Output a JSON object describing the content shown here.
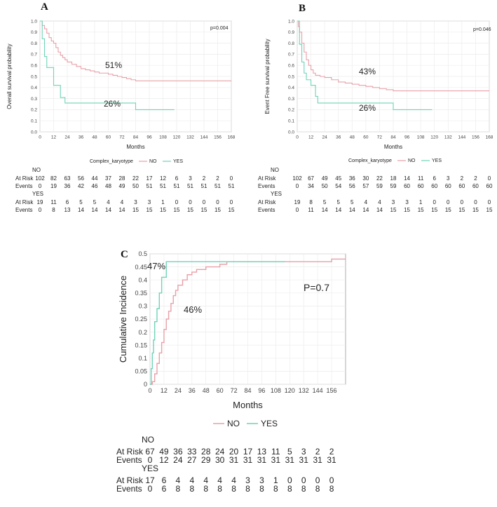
{
  "panels": [
    {
      "letter": "A",
      "ylabel": "Overall survival probability",
      "xlabel": "Months",
      "pvalue": "p=0.004",
      "legend_title": "Complex_karyotype",
      "legend": [
        "NO",
        "YES"
      ],
      "annotations": [
        "51%",
        "26%"
      ],
      "yticks": [
        "0.0",
        "0.1",
        "0.2",
        "0.3",
        "0.4",
        "0.5",
        "0.6",
        "0.7",
        "0.8",
        "0.9",
        "1.0"
      ],
      "xticks": [
        "0",
        "12",
        "24",
        "36",
        "48",
        "60",
        "72",
        "84",
        "96",
        "108",
        "120",
        "132",
        "144",
        "156",
        "168"
      ],
      "risk_table": {
        "no_title": "NO",
        "yes_title": "YES",
        "at_risk_label": "At Risk",
        "events_label": "Events",
        "no_at_risk": [
          "102",
          "82",
          "63",
          "56",
          "44",
          "37",
          "28",
          "22",
          "17",
          "12",
          "6",
          "3",
          "2",
          "2",
          "0"
        ],
        "no_events": [
          "0",
          "19",
          "36",
          "42",
          "46",
          "48",
          "49",
          "50",
          "51",
          "51",
          "51",
          "51",
          "51",
          "51",
          "51"
        ],
        "yes_at_risk": [
          "19",
          "11",
          "6",
          "5",
          "5",
          "4",
          "4",
          "3",
          "3",
          "1",
          "0",
          "0",
          "0",
          "0",
          "0"
        ],
        "yes_events": [
          "0",
          "8",
          "13",
          "14",
          "14",
          "14",
          "14",
          "15",
          "15",
          "15",
          "15",
          "15",
          "15",
          "15",
          "15"
        ]
      }
    },
    {
      "letter": "B",
      "ylabel": "Event Free survival probability",
      "xlabel": "Months",
      "pvalue": "p=0.046",
      "legend_title": "Complex_karyotype",
      "legend": [
        "NO",
        "YES"
      ],
      "annotations": [
        "43%",
        "26%"
      ],
      "yticks": [
        "0.0",
        "0.1",
        "0.2",
        "0.3",
        "0.4",
        "0.5",
        "0.6",
        "0.7",
        "0.8",
        "0.9",
        "1.0"
      ],
      "xticks": [
        "0",
        "12",
        "24",
        "36",
        "48",
        "60",
        "72",
        "84",
        "96",
        "108",
        "120",
        "132",
        "144",
        "156",
        "168"
      ],
      "risk_table": {
        "no_title": "NO",
        "yes_title": "YES",
        "at_risk_label": "At Risk",
        "events_label": "Events",
        "no_at_risk": [
          "102",
          "67",
          "49",
          "45",
          "36",
          "30",
          "22",
          "18",
          "14",
          "11",
          "6",
          "3",
          "2",
          "2",
          "0"
        ],
        "no_events": [
          "0",
          "34",
          "50",
          "54",
          "56",
          "57",
          "59",
          "59",
          "60",
          "60",
          "60",
          "60",
          "60",
          "60",
          "60"
        ],
        "yes_at_risk": [
          "19",
          "8",
          "5",
          "5",
          "5",
          "4",
          "4",
          "3",
          "3",
          "1",
          "0",
          "0",
          "0",
          "0",
          "0"
        ],
        "yes_events": [
          "0",
          "11",
          "14",
          "14",
          "14",
          "14",
          "14",
          "15",
          "15",
          "15",
          "15",
          "15",
          "15",
          "15",
          "15"
        ]
      }
    },
    {
      "letter": "C",
      "ylabel": "Cumulative Incidence",
      "xlabel": "Months",
      "pvalue": "P=0.7",
      "legend": [
        "NO",
        "YES"
      ],
      "annotations": [
        "47%",
        "46%"
      ],
      "yticks": [
        "0",
        "0.05",
        "0.1",
        "0.15",
        "0.2",
        "0.25",
        "0.3",
        "0.35",
        "0.4",
        "0.45",
        "0.5"
      ],
      "xticks": [
        "0",
        "12",
        "24",
        "36",
        "48",
        "60",
        "72",
        "84",
        "96",
        "108",
        "120",
        "132",
        "144",
        "156"
      ],
      "risk_table": {
        "no_title": "NO",
        "yes_title": "YES",
        "at_risk_label": "At Risk",
        "events_label": "Events",
        "no_at_risk": [
          "67",
          "49",
          "36",
          "33",
          "28",
          "24",
          "20",
          "17",
          "13",
          "11",
          "5",
          "3",
          "2",
          "2"
        ],
        "no_events": [
          "0",
          "12",
          "24",
          "27",
          "29",
          "30",
          "31",
          "31",
          "31",
          "31",
          "31",
          "31",
          "31",
          "31"
        ],
        "yes_at_risk": [
          "17",
          "6",
          "4",
          "4",
          "4",
          "4",
          "4",
          "3",
          "3",
          "1",
          "0",
          "0",
          "0",
          "0"
        ],
        "yes_events": [
          "0",
          "6",
          "8",
          "8",
          "8",
          "8",
          "8",
          "8",
          "8",
          "8",
          "8",
          "8",
          "8",
          "8"
        ]
      }
    }
  ],
  "chart_data": [
    {
      "type": "line",
      "title": "",
      "xlabel": "Months",
      "ylabel": "Overall survival probability",
      "xlim": [
        0,
        168
      ],
      "ylim": [
        0,
        1
      ],
      "grid": true,
      "colors": {
        "NO": "#e8a0a8",
        "YES": "#6fd3b8"
      },
      "series": [
        {
          "name": "NO",
          "x": [
            0,
            2,
            4,
            6,
            8,
            10,
            12,
            14,
            16,
            18,
            20,
            22,
            24,
            28,
            32,
            36,
            40,
            44,
            48,
            52,
            56,
            60,
            64,
            68,
            72,
            76,
            80,
            84,
            96,
            108,
            120,
            140,
            168
          ],
          "y": [
            1.0,
            0.96,
            0.93,
            0.89,
            0.85,
            0.82,
            0.8,
            0.76,
            0.72,
            0.69,
            0.67,
            0.65,
            0.63,
            0.61,
            0.59,
            0.57,
            0.56,
            0.55,
            0.54,
            0.53,
            0.53,
            0.52,
            0.51,
            0.5,
            0.49,
            0.48,
            0.47,
            0.46,
            0.46,
            0.46,
            0.46,
            0.46,
            0.46
          ]
        },
        {
          "name": "YES",
          "x": [
            0,
            2,
            4,
            6,
            8,
            12,
            18,
            22,
            24,
            36,
            48,
            60,
            72,
            84,
            96,
            108,
            118
          ],
          "y": [
            1.0,
            0.84,
            0.68,
            0.58,
            0.58,
            0.42,
            0.31,
            0.26,
            0.26,
            0.26,
            0.26,
            0.26,
            0.26,
            0.2,
            0.2,
            0.2,
            0.2
          ]
        }
      ],
      "annotations": [
        "51%",
        "26%"
      ],
      "pvalue": "p=0.004"
    },
    {
      "type": "line",
      "title": "",
      "xlabel": "Months",
      "ylabel": "Event Free survival probability",
      "xlim": [
        0,
        168
      ],
      "ylim": [
        0,
        1
      ],
      "grid": true,
      "colors": {
        "NO": "#e8a0a8",
        "YES": "#6fd3b8"
      },
      "series": [
        {
          "name": "NO",
          "x": [
            0,
            1,
            2,
            4,
            6,
            8,
            10,
            12,
            14,
            16,
            18,
            20,
            24,
            30,
            36,
            42,
            48,
            54,
            60,
            66,
            72,
            78,
            84,
            96,
            108,
            120,
            140,
            168
          ],
          "y": [
            1.0,
            0.95,
            0.9,
            0.8,
            0.72,
            0.65,
            0.6,
            0.56,
            0.53,
            0.51,
            0.51,
            0.5,
            0.49,
            0.47,
            0.45,
            0.44,
            0.43,
            0.42,
            0.41,
            0.4,
            0.39,
            0.38,
            0.37,
            0.37,
            0.37,
            0.37,
            0.37,
            0.37
          ]
        },
        {
          "name": "YES",
          "x": [
            0,
            2,
            4,
            6,
            8,
            12,
            16,
            18,
            24,
            36,
            48,
            60,
            72,
            84,
            96,
            108,
            118
          ],
          "y": [
            1.0,
            0.79,
            0.63,
            0.53,
            0.47,
            0.42,
            0.32,
            0.26,
            0.26,
            0.26,
            0.26,
            0.26,
            0.26,
            0.2,
            0.2,
            0.2,
            0.2
          ]
        }
      ],
      "annotations": [
        "43%",
        "26%"
      ],
      "pvalue": "p=0.046"
    },
    {
      "type": "line",
      "title": "",
      "xlabel": "Months",
      "ylabel": "Cumulative Incidence",
      "xlim": [
        0,
        168
      ],
      "ylim": [
        0,
        0.5
      ],
      "grid": true,
      "colors": {
        "NO": "#e8a0a8",
        "YES": "#6fd3b8"
      },
      "series": [
        {
          "name": "NO",
          "x": [
            0,
            2,
            4,
            6,
            8,
            10,
            12,
            14,
            16,
            18,
            20,
            22,
            24,
            28,
            32,
            36,
            40,
            44,
            48,
            54,
            60,
            66,
            72,
            84,
            96,
            108,
            120,
            132,
            144,
            156,
            168
          ],
          "y": [
            0,
            0.01,
            0.04,
            0.08,
            0.12,
            0.16,
            0.21,
            0.25,
            0.28,
            0.31,
            0.34,
            0.36,
            0.38,
            0.4,
            0.42,
            0.43,
            0.44,
            0.44,
            0.45,
            0.45,
            0.46,
            0.47,
            0.47,
            0.47,
            0.47,
            0.47,
            0.47,
            0.47,
            0.47,
            0.48,
            0.48
          ]
        },
        {
          "name": "YES",
          "x": [
            0,
            1,
            2,
            3,
            4,
            6,
            8,
            10,
            12,
            14,
            16,
            18,
            24,
            36,
            48,
            60,
            72,
            84,
            96,
            108,
            116
          ],
          "y": [
            0,
            0.06,
            0.12,
            0.17,
            0.24,
            0.29,
            0.35,
            0.41,
            0.41,
            0.47,
            0.47,
            0.47,
            0.47,
            0.47,
            0.47,
            0.47,
            0.47,
            0.47,
            0.47,
            0.47,
            0.47
          ]
        }
      ],
      "annotations": [
        "47%",
        "46%"
      ],
      "pvalue": "P=0.7"
    }
  ]
}
